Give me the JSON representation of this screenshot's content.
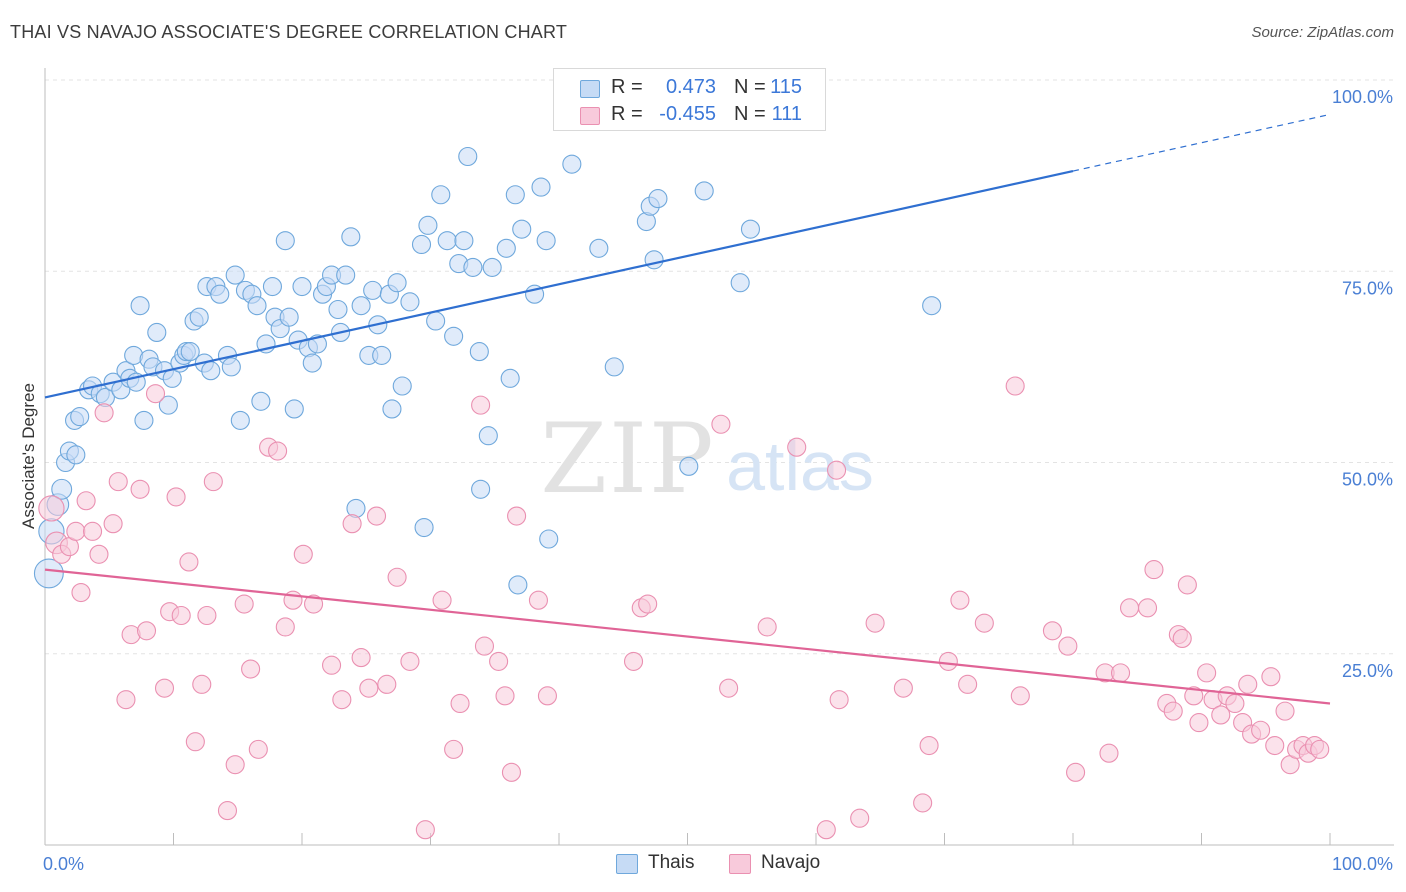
{
  "title": "THAI VS NAVAJO ASSOCIATE'S DEGREE CORRELATION CHART",
  "source": "Source: ZipAtlas.com",
  "watermark": {
    "zip": "ZIP",
    "atlas": "atlas"
  },
  "colors": {
    "thais": "#6fa8dc",
    "thais_fill": "#c6dbf5",
    "thais_line": "#2f6fd0",
    "navajo": "#ea90b1",
    "navajo_fill": "#f8cadb",
    "navajo_line": "#e06496",
    "axis_text": "#4a7fd4"
  },
  "legend": {
    "thais": {
      "r_label": "R =",
      "r_value": "0.473",
      "n_label": "N =",
      "n_value": "115"
    },
    "navajo": {
      "r_label": "R =",
      "r_value": "-0.455",
      "n_label": "N =",
      "n_value": "111"
    }
  },
  "chart_data": {
    "type": "scatter",
    "title": "THAI VS NAVAJO ASSOCIATE'S DEGREE CORRELATION CHART",
    "xlabel": "",
    "ylabel": "Associate's Degree",
    "xlim": [
      0,
      100
    ],
    "ylim": [
      0,
      100
    ],
    "x_tick_labels": [
      "0.0%",
      "100.0%"
    ],
    "y_tick_labels": [
      "25.0%",
      "50.0%",
      "75.0%",
      "100.0%"
    ],
    "y_ticks": [
      25,
      50,
      75,
      100
    ],
    "grid": true,
    "legend_position": "top-center",
    "series": [
      {
        "name": "Thais",
        "r": 0.473,
        "n": 115,
        "trend": {
          "x": [
            0,
            80,
            100
          ],
          "y": [
            58.5,
            88,
            95.5
          ],
          "solid_until": 80
        },
        "points": [
          [
            0.3,
            35.5,
            1.6
          ],
          [
            0.5,
            41,
            1.4
          ],
          [
            1,
            44.5,
            1.2
          ],
          [
            1.3,
            46.5,
            1.1
          ],
          [
            1.6,
            50,
            1
          ],
          [
            1.9,
            51.5,
            1
          ],
          [
            2.4,
            51,
            1
          ],
          [
            2.3,
            55.5,
            1
          ],
          [
            2.7,
            56,
            1
          ],
          [
            3.4,
            59.5,
            1
          ],
          [
            3.7,
            60,
            1
          ],
          [
            4.3,
            59,
            1
          ],
          [
            4.7,
            58.5,
            1
          ],
          [
            5.3,
            60.5,
            1
          ],
          [
            5.9,
            59.5,
            1
          ],
          [
            6.3,
            62,
            1
          ],
          [
            6.6,
            61,
            1
          ],
          [
            6.9,
            64,
            1
          ],
          [
            7.1,
            60.5,
            1
          ],
          [
            7.4,
            70.5,
            1
          ],
          [
            7.7,
            55.5,
            1
          ],
          [
            8.1,
            63.5,
            1
          ],
          [
            8.4,
            62.5,
            1
          ],
          [
            8.7,
            67,
            1
          ],
          [
            9.3,
            62,
            1
          ],
          [
            9.6,
            57.5,
            1
          ],
          [
            9.9,
            61,
            1
          ],
          [
            10.5,
            63,
            1
          ],
          [
            10.8,
            64,
            1
          ],
          [
            11,
            64.5,
            1
          ],
          [
            11.3,
            64.5,
            1
          ],
          [
            11.6,
            68.5,
            1
          ],
          [
            12,
            69,
            1
          ],
          [
            12.4,
            63,
            1
          ],
          [
            12.6,
            73,
            1
          ],
          [
            12.9,
            62,
            1
          ],
          [
            13.3,
            73,
            1
          ],
          [
            13.6,
            72,
            1
          ],
          [
            14.2,
            64,
            1
          ],
          [
            14.5,
            62.5,
            1
          ],
          [
            14.8,
            74.5,
            1
          ],
          [
            15.2,
            55.5,
            1
          ],
          [
            15.6,
            72.5,
            1
          ],
          [
            16.1,
            72,
            1
          ],
          [
            16.5,
            70.5,
            1
          ],
          [
            16.8,
            58,
            1
          ],
          [
            17.2,
            65.5,
            1
          ],
          [
            17.7,
            73,
            1
          ],
          [
            17.9,
            69,
            1
          ],
          [
            18.3,
            67.5,
            1
          ],
          [
            18.7,
            79,
            1
          ],
          [
            19,
            69,
            1
          ],
          [
            19.4,
            57,
            1
          ],
          [
            19.7,
            66,
            1
          ],
          [
            20,
            73,
            1
          ],
          [
            20.5,
            65,
            1
          ],
          [
            20.8,
            63,
            1
          ],
          [
            21.2,
            65.5,
            1
          ],
          [
            21.6,
            72,
            1
          ],
          [
            21.9,
            73,
            1
          ],
          [
            22.3,
            74.5,
            1
          ],
          [
            22.8,
            70,
            1
          ],
          [
            23,
            67,
            1
          ],
          [
            23.4,
            74.5,
            1
          ],
          [
            23.8,
            79.5,
            1
          ],
          [
            24.2,
            44,
            1
          ],
          [
            24.6,
            70.5,
            1
          ],
          [
            25.2,
            64,
            1
          ],
          [
            25.5,
            72.5,
            1
          ],
          [
            25.9,
            68,
            1
          ],
          [
            26.2,
            64,
            1
          ],
          [
            26.8,
            72,
            1
          ],
          [
            27,
            57,
            1
          ],
          [
            27.4,
            73.5,
            1
          ],
          [
            27.8,
            60,
            1
          ],
          [
            28.4,
            71,
            1
          ],
          [
            29.3,
            78.5,
            1
          ],
          [
            29.5,
            41.5,
            1
          ],
          [
            29.8,
            81,
            1
          ],
          [
            30.4,
            68.5,
            1
          ],
          [
            30.8,
            85,
            1
          ],
          [
            31.3,
            79,
            1
          ],
          [
            31.8,
            66.5,
            1
          ],
          [
            32.2,
            76,
            1
          ],
          [
            32.6,
            79,
            1
          ],
          [
            32.9,
            90,
            1
          ],
          [
            33.3,
            75.5,
            1
          ],
          [
            33.8,
            64.5,
            1
          ],
          [
            33.9,
            46.5,
            1
          ],
          [
            34.5,
            53.5,
            1
          ],
          [
            34.8,
            75.5,
            1
          ],
          [
            35.9,
            78,
            1
          ],
          [
            36.2,
            61,
            1
          ],
          [
            36.6,
            85,
            1
          ],
          [
            36.8,
            34,
            1
          ],
          [
            37.1,
            80.5,
            1
          ],
          [
            38.1,
            72,
            1
          ],
          [
            38.6,
            86,
            1
          ],
          [
            39,
            79,
            1
          ],
          [
            39.2,
            40,
            1
          ],
          [
            41,
            89,
            1
          ],
          [
            43.1,
            78,
            1
          ],
          [
            44.3,
            62.5,
            1
          ],
          [
            46.8,
            81.5,
            1
          ],
          [
            47.1,
            83.5,
            1
          ],
          [
            47.4,
            76.5,
            1
          ],
          [
            47.7,
            84.5,
            1
          ],
          [
            50.1,
            49.5,
            1
          ],
          [
            51.3,
            85.5,
            1
          ],
          [
            54.1,
            73.5,
            1
          ],
          [
            54.9,
            80.5,
            1
          ],
          [
            69,
            70.5,
            1
          ]
        ]
      },
      {
        "name": "Navajo",
        "r": -0.455,
        "n": 111,
        "trend": {
          "x": [
            0,
            100
          ],
          "y": [
            36,
            18.5
          ],
          "solid_until": 100
        },
        "points": [
          [
            0.5,
            44,
            1.4
          ],
          [
            0.9,
            39.5,
            1.2
          ],
          [
            1.3,
            38,
            1
          ],
          [
            1.9,
            39,
            1
          ],
          [
            2.4,
            41,
            1
          ],
          [
            2.8,
            33,
            1
          ],
          [
            3.2,
            45,
            1
          ],
          [
            3.7,
            41,
            1
          ],
          [
            4.2,
            38,
            1
          ],
          [
            4.6,
            56.5,
            1
          ],
          [
            5.3,
            42,
            1
          ],
          [
            5.7,
            47.5,
            1
          ],
          [
            6.3,
            19,
            1
          ],
          [
            6.7,
            27.5,
            1
          ],
          [
            7.4,
            46.5,
            1
          ],
          [
            7.9,
            28,
            1
          ],
          [
            8.6,
            59,
            1
          ],
          [
            9.3,
            20.5,
            1
          ],
          [
            9.7,
            30.5,
            1
          ],
          [
            10.2,
            45.5,
            1
          ],
          [
            10.6,
            30,
            1
          ],
          [
            11.2,
            37,
            1
          ],
          [
            11.7,
            13.5,
            1
          ],
          [
            12.2,
            21,
            1
          ],
          [
            12.6,
            30,
            1
          ],
          [
            13.1,
            47.5,
            1
          ],
          [
            14.2,
            4.5,
            1
          ],
          [
            14.8,
            10.5,
            1
          ],
          [
            15.5,
            31.5,
            1
          ],
          [
            16,
            23,
            1
          ],
          [
            16.6,
            12.5,
            1
          ],
          [
            17.4,
            52,
            1
          ],
          [
            18.1,
            51.5,
            1
          ],
          [
            18.7,
            28.5,
            1
          ],
          [
            19.3,
            32,
            1
          ],
          [
            20.1,
            38,
            1
          ],
          [
            20.9,
            31.5,
            1
          ],
          [
            22.3,
            23.5,
            1
          ],
          [
            23.1,
            19,
            1
          ],
          [
            23.9,
            42,
            1
          ],
          [
            24.6,
            24.5,
            1
          ],
          [
            25.2,
            20.5,
            1
          ],
          [
            25.8,
            43,
            1
          ],
          [
            26.6,
            21,
            1
          ],
          [
            27.4,
            35,
            1
          ],
          [
            28.4,
            24,
            1
          ],
          [
            29.6,
            2,
            1
          ],
          [
            30.9,
            32,
            1
          ],
          [
            31.8,
            12.5,
            1
          ],
          [
            32.3,
            18.5,
            1
          ],
          [
            33.9,
            57.5,
            1
          ],
          [
            34.2,
            26,
            1
          ],
          [
            35.3,
            24,
            1
          ],
          [
            35.8,
            19.5,
            1
          ],
          [
            36.3,
            9.5,
            1
          ],
          [
            36.7,
            43,
            1
          ],
          [
            38.4,
            32,
            1
          ],
          [
            39.1,
            19.5,
            1
          ],
          [
            45.8,
            24,
            1
          ],
          [
            46.4,
            31,
            1
          ],
          [
            46.9,
            31.5,
            1
          ],
          [
            52.6,
            55,
            1
          ],
          [
            53.2,
            20.5,
            1
          ],
          [
            56.2,
            28.5,
            1
          ],
          [
            58.5,
            52,
            1
          ],
          [
            60.8,
            2,
            1
          ],
          [
            61.6,
            49,
            1
          ],
          [
            61.8,
            19,
            1
          ],
          [
            63.4,
            3.5,
            1
          ],
          [
            64.6,
            29,
            1
          ],
          [
            66.8,
            20.5,
            1
          ],
          [
            68.3,
            5.5,
            1
          ],
          [
            68.8,
            13,
            1
          ],
          [
            70.3,
            24,
            1
          ],
          [
            71.2,
            32,
            1
          ],
          [
            71.8,
            21,
            1
          ],
          [
            73.1,
            29,
            1
          ],
          [
            75.5,
            60,
            1
          ],
          [
            75.9,
            19.5,
            1
          ],
          [
            78.4,
            28,
            1
          ],
          [
            79.6,
            26,
            1
          ],
          [
            80.2,
            9.5,
            1
          ],
          [
            82.5,
            22.5,
            1
          ],
          [
            82.8,
            12,
            1
          ],
          [
            83.7,
            22.5,
            1
          ],
          [
            84.4,
            31,
            1
          ],
          [
            85.8,
            31,
            1
          ],
          [
            86.3,
            36,
            1
          ],
          [
            87.3,
            18.5,
            1
          ],
          [
            87.8,
            17.5,
            1
          ],
          [
            88.2,
            27.5,
            1
          ],
          [
            88.5,
            27,
            1
          ],
          [
            88.9,
            34,
            1
          ],
          [
            89.4,
            19.5,
            1
          ],
          [
            89.8,
            16,
            1
          ],
          [
            90.4,
            22.5,
            1
          ],
          [
            90.9,
            19,
            1
          ],
          [
            91.5,
            17,
            1
          ],
          [
            92,
            19.5,
            1
          ],
          [
            92.6,
            18.5,
            1
          ],
          [
            93.2,
            16,
            1
          ],
          [
            93.6,
            21,
            1
          ],
          [
            93.9,
            14.5,
            1
          ],
          [
            94.6,
            15,
            1
          ],
          [
            95.4,
            22,
            1
          ],
          [
            95.7,
            13,
            1
          ],
          [
            96.5,
            17.5,
            1
          ],
          [
            96.9,
            10.5,
            1
          ],
          [
            97.4,
            12.5,
            1
          ],
          [
            97.9,
            13,
            1
          ],
          [
            98.3,
            12,
            1
          ],
          [
            98.8,
            13,
            1
          ],
          [
            99.2,
            12.5,
            1
          ]
        ]
      }
    ]
  }
}
